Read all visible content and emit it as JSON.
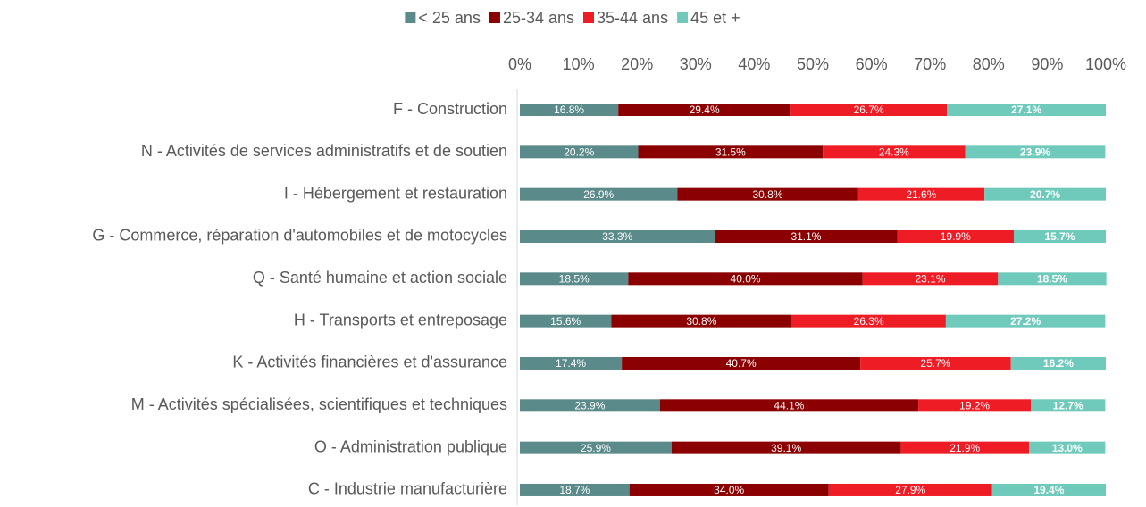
{
  "chart_data": {
    "type": "stacked-bar-horizontal",
    "categories": [
      "F - Construction",
      "N - Activités de services administratifs et de soutien",
      "I - Hébergement et restauration",
      "G - Commerce, réparation d'automobiles et de motocycles",
      "Q - Santé humaine et action sociale",
      "H - Transports et entreposage",
      "K - Activités financières et d'assurance",
      "M - Activités spécialisées, scientifiques et techniques",
      "O - Administration publique",
      "C - Industrie manufacturière"
    ],
    "series": [
      {
        "name": "< 25 ans",
        "color": "#5b8a8a",
        "values": [
          16.8,
          20.2,
          26.9,
          33.3,
          18.5,
          15.6,
          17.4,
          23.9,
          25.9,
          18.7
        ],
        "value_labels": [
          "16.8%",
          "20.2%",
          "26.9%",
          "33.3%",
          "18.5%",
          "15.6%",
          "17.4%",
          "23.9%",
          "25.9%",
          "18.7%"
        ]
      },
      {
        "name": "25-34 ans",
        "color": "#8b0000",
        "values": [
          29.4,
          31.5,
          30.8,
          31.1,
          40.0,
          30.8,
          40.7,
          44.1,
          39.1,
          34.0
        ],
        "value_labels": [
          "29.4%",
          "31.5%",
          "30.8%",
          "31.1%",
          "40.0%",
          "30.8%",
          "40.7%",
          "44.1%",
          "39.1%",
          "34.0%"
        ]
      },
      {
        "name": "35-44 ans",
        "color": "#ee1c25",
        "values": [
          26.7,
          24.3,
          21.6,
          19.9,
          23.1,
          26.3,
          25.7,
          19.2,
          21.9,
          27.9
        ],
        "value_labels": [
          "26.7%",
          "24.3%",
          "21.6%",
          "19.9%",
          "23.1%",
          "26.3%",
          "25.7%",
          "19.2%",
          "21.9%",
          "27.9%"
        ]
      },
      {
        "name": "45 et +",
        "color": "#6fcabc",
        "values": [
          27.1,
          23.9,
          20.7,
          15.7,
          18.5,
          27.2,
          16.2,
          12.7,
          13.0,
          19.4
        ],
        "value_labels": [
          "27.1%",
          "23.9%",
          "20.7%",
          "15.7%",
          "18.5%",
          "27.2%",
          "16.2%",
          "12.7%",
          "13.0%",
          "19.4%"
        ]
      }
    ],
    "xlim": [
      0,
      100
    ],
    "xticks": [
      {
        "value": 0,
        "label": "0%"
      },
      {
        "value": 10,
        "label": "10%"
      },
      {
        "value": 20,
        "label": "20%"
      },
      {
        "value": 30,
        "label": "30%"
      },
      {
        "value": 40,
        "label": "40%"
      },
      {
        "value": 50,
        "label": "50%"
      },
      {
        "value": 60,
        "label": "60%"
      },
      {
        "value": 70,
        "label": "70%"
      },
      {
        "value": 80,
        "label": "80%"
      },
      {
        "value": 90,
        "label": "90%"
      },
      {
        "value": 100,
        "label": "100%"
      }
    ],
    "legend": "top"
  }
}
